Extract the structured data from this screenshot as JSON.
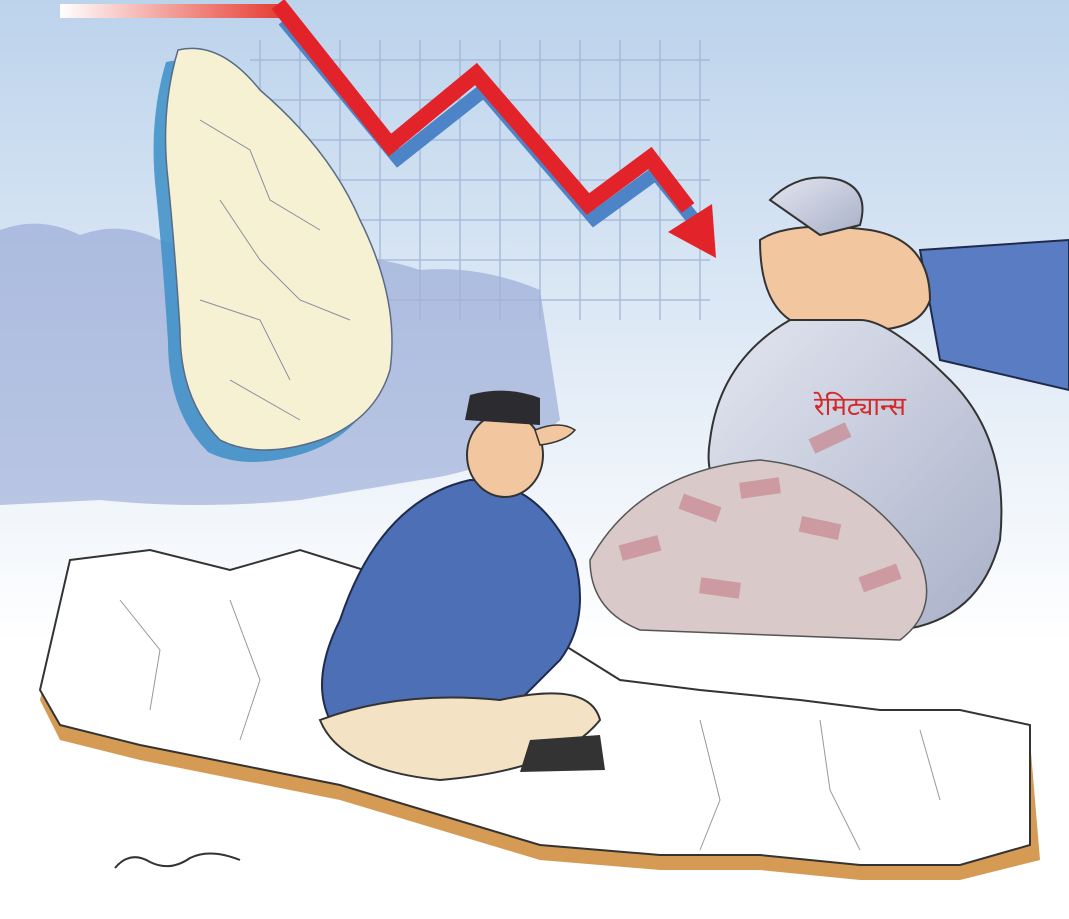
{
  "image": {
    "bag_label": "रेमिट्यान्स"
  }
}
